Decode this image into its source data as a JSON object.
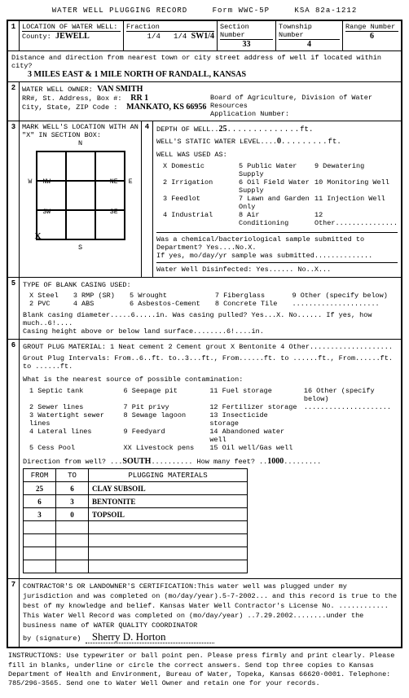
{
  "header": {
    "title": "WATER WELL PLUGGING RECORD",
    "form": "Form WWC-5P",
    "ksa": "KSA 82a-1212"
  },
  "loc": {
    "label": "LOCATION OF WATER WELL:",
    "fraction": "Fraction",
    "section_lbl": "Section Number",
    "township_lbl": "Township Number",
    "range_lbl": "Range Number",
    "county_lbl": "County:",
    "county": "JEWELL",
    "q1": "1/4",
    "q2": "1/4",
    "q3": "SW1/4",
    "section": "33",
    "township": "4",
    "range": "6",
    "dist_lbl": "Distance and direction from nearest town or city street address of well if located within city?",
    "dist": "3 MILES EAST & 1 MILE NORTH OF RANDALL, KANSAS"
  },
  "owner": {
    "label": "WATER WELL OWNER:",
    "name": "VAN SMITH",
    "addr_lbl": "RR#, St. Address, Box #:",
    "addr": "RR 1",
    "csz_lbl": "City, State, ZIP Code :",
    "csz": "MANKATO, KS  66956",
    "board": "Board of Agriculture, Division of Water Resources",
    "app": "Application Number:"
  },
  "mark": {
    "label": "MARK WELL'S LOCATION WITH AN \"X\" IN SECTION BOX:",
    "n": "N",
    "s": "S",
    "e": "E",
    "w": "W",
    "nw": "NW",
    "ne": "NE",
    "sw": "SW",
    "se": "SE"
  },
  "depth": {
    "d_lbl": "DEPTH OF WELL..",
    "d": "25",
    "ft": "ft.",
    "swl_lbl": "WELL'S STATIC WATER LEVEL....",
    "swl": "0",
    "used": "WELL WAS USED AS:",
    "opts": [
      "X Domestic",
      "2 Irrigation",
      "3 Feedlot",
      "4 Industrial",
      "5 Public Water Supply",
      "6 Oil Field Water Supply",
      "7 Lawn and Garden Only",
      "8 Air Conditioning",
      "9 Dewatering",
      "10 Monitoring Well",
      "11 Injection Well",
      "12 Other..............."
    ],
    "chem": "Was a chemical/bacteriological sample submitted to Department? Yes....No.X.",
    "chem2": "If yes, mo/day/yr sample was submitted..............",
    "disinf": "Water Well Disinfected:  Yes......  No..X..."
  },
  "casing": {
    "label": "TYPE OF BLANK CASING USED:",
    "opts": [
      "X Steel",
      "2 PVC",
      "3 RMP (SR)",
      "4 ABS",
      "5 Wrought",
      "6 Asbestos-Cement",
      "7 Fiberglass",
      "8 Concrete Tile",
      "9 Other (specify below)",
      "....................."
    ],
    "diam": "Blank casing diameter.....6.....in.     Was casing pulled?  Yes...X.  No......  If yes, how much..6!....",
    "height": "Casing height above or below land surface........6!....in."
  },
  "grout": {
    "label": "GROUT PLUG MATERIAL:  1 Neat cement    2 Cement grout    X Bentonite    4 Other....................",
    "intervals": "Grout Plug Intervals:    From..6..ft. to..3...ft.,  From......ft. to ......ft.,  From......ft. to ......ft.",
    "contam": "What is the nearest source of possible contamination:",
    "sources": [
      "1 Septic tank",
      "2 Sewer lines",
      "3 Watertight sewer lines",
      "4 Lateral lines",
      "5 Cess Pool",
      "6 Seepage pit",
      "7 Pit privy",
      "8 Sewage lagoon",
      "9 Feedyard",
      "XX Livestock pens",
      "11 Fuel storage",
      "12 Fertilizer storage",
      "13 Insecticide storage",
      "14 Abandoned water well",
      "15 Oil well/Gas well",
      "16 Other (specify below)",
      "....................."
    ],
    "dir_lbl": "Direction from well? ...",
    "dir": "SOUTH",
    "dir_after": "..........     How many feet? ..",
    "feet": "1000",
    "feet_after": "........."
  },
  "table": {
    "h1": "FROM",
    "h2": "TO",
    "h3": "PLUGGING MATERIALS",
    "rows": [
      {
        "f": "25",
        "t": "6",
        "m": "CLAY SUBSOIL"
      },
      {
        "f": "6",
        "t": "3",
        "m": "BENTONITE"
      },
      {
        "f": "3",
        "t": "0",
        "m": "TOPSOIL"
      },
      {
        "f": "",
        "t": "",
        "m": ""
      },
      {
        "f": "",
        "t": "",
        "m": ""
      },
      {
        "f": "",
        "t": "",
        "m": ""
      },
      {
        "f": "",
        "t": "",
        "m": ""
      }
    ]
  },
  "cert": {
    "text": "CONTRACTOR'S OR LANDOWNER'S CERTIFICATION:This water well was plugged under my jurisdiction and was completed on (mo/day/year).5-7-2002... and this record is true to the best of my knowledge and belief.  Kansas Water Well Contractor's License No. ............  This Water Well Record was completed on (mo/day/year) ..7.29.2002........under the business name of  WATER QUALITY COORDINATOR",
    "sig_lbl": "by (signature)",
    "sig": "Sherry D. Horton"
  },
  "instr": "INSTRUCTIONS: Use typewriter or ball point pen. Please press firmly and print clearly. Please fill in blanks, underline or circle the correct answers. Send top three copies to Kansas Department of Health and Environment, Bureau of Water, Topeka, Kansas 66620-0001. Telephone: 785/296-3565. Send one to Water Well Owner and retain one for your records."
}
